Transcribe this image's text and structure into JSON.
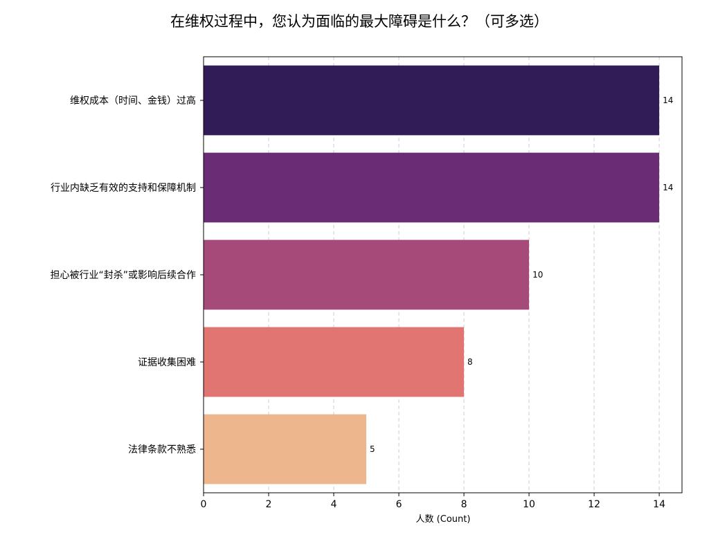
{
  "chart_data": {
    "type": "bar",
    "orientation": "horizontal",
    "title": "在维权过程中，您认为面临的最大障碍是什么？（可多选）",
    "xlabel": "人数 (Count)",
    "ylabel": "",
    "categories": [
      "维权成本（时间、金钱）过高",
      "行业内缺乏有效的支持和保障机制",
      "担心被行业“封杀”或影响后续合作",
      "证据收集困难",
      "法律条款不熟悉"
    ],
    "values": [
      14,
      14,
      10,
      8,
      5
    ],
    "data_labels": [
      "14",
      "14",
      "10",
      "8",
      "5"
    ],
    "colors": [
      "#321C57",
      "#6A2D75",
      "#A64A79",
      "#E07572",
      "#EEB68C"
    ],
    "xlim": [
      0,
      14.7
    ],
    "xticks": [
      0,
      2,
      4,
      6,
      8,
      10,
      12,
      14
    ],
    "xtick_labels": [
      "0",
      "2",
      "4",
      "6",
      "8",
      "10",
      "12",
      "14"
    ],
    "grid": {
      "x": true,
      "y": false,
      "style": "dashed"
    }
  }
}
